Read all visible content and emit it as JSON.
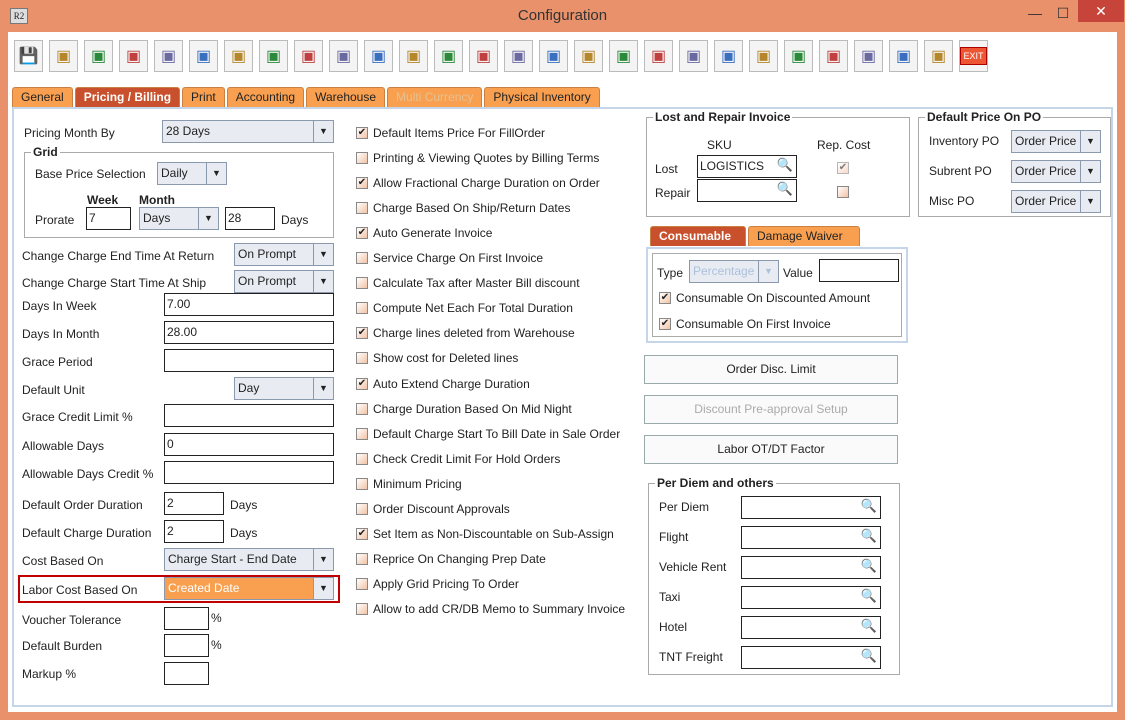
{
  "window": {
    "title": "Configuration",
    "app_icon": "R2",
    "minimize": "—",
    "maximize": "☐",
    "close": "✕"
  },
  "toolbar": {
    "icons": [
      "save-icon",
      "shipping-alert-icon",
      "coins-alert-icon",
      "invoice-alert-icon",
      "edit-note-icon",
      "form-alert-icon",
      "pay-alert-icon",
      "grid-alert-icon",
      "calculator-alert-icon",
      "lock-arrow-icon",
      "calendar-icon",
      "ruler-triangle-icon",
      "gears-icon",
      "color-cubes-icon",
      "gear-dollar-icon",
      "folder-clock-icon",
      "card-pen-icon",
      "document-cubes-icon",
      "document-arrow-icon",
      "shield-gold-icon",
      "shield-user-icon",
      "gear-wrench-icon",
      "document-stack-icon",
      "user-search-icon",
      "folder-gear-icon",
      "calculator-gear-icon",
      "transfer-icon",
      "exit-icon"
    ],
    "exit_label": "EXIT"
  },
  "tabs": [
    {
      "label": "General"
    },
    {
      "label": "Pricing / Billing",
      "active": true
    },
    {
      "label": "Print"
    },
    {
      "label": "Accounting"
    },
    {
      "label": "Warehouse"
    },
    {
      "label": "Multi Currency",
      "disabled": true
    },
    {
      "label": "Physical Inventory"
    }
  ],
  "left": {
    "pricing_month_by": {
      "label": "Pricing Month By",
      "value": "28 Days"
    },
    "grid": {
      "title": "Grid",
      "base_price_label": "Base Price Selection",
      "base_price_value": "Daily",
      "week_label": "Week",
      "month_label": "Month",
      "prorate_label": "Prorate",
      "week_value": "7",
      "month_unit": "Days",
      "month_value": "28",
      "days_label": "Days"
    },
    "fields": [
      {
        "label": "Change Charge End Time At Return",
        "type": "combo",
        "value": "On Prompt"
      },
      {
        "label": "Change Charge Start Time At Ship",
        "type": "combo",
        "value": "On Prompt"
      },
      {
        "label": "Days In Week",
        "type": "input",
        "value": "7.00"
      },
      {
        "label": "Days In Month",
        "type": "input",
        "value": "28.00"
      },
      {
        "label": "Grace Period",
        "type": "input",
        "value": ""
      },
      {
        "label": "Default Unit",
        "type": "combo",
        "value": "Day"
      },
      {
        "label": "Grace Credit Limit %",
        "type": "input",
        "value": ""
      },
      {
        "label": "Allowable Days",
        "type": "input",
        "value": "0"
      },
      {
        "label": "Allowable Days Credit %",
        "type": "input",
        "value": ""
      }
    ],
    "default_order_duration": {
      "label": "Default Order Duration",
      "value": "2",
      "unit": "Days"
    },
    "default_charge_duration": {
      "label": "Default Charge Duration",
      "value": "2",
      "unit": "Days"
    },
    "cost_based_on": {
      "label": "Cost Based On",
      "value": "Charge Start - End Date"
    },
    "labor_cost_based_on": {
      "label": "Labor Cost Based On",
      "value": "Created Date"
    },
    "voucher_tolerance": {
      "label": "Voucher Tolerance",
      "value": "",
      "unit": "%"
    },
    "default_burden": {
      "label": "Default Burden",
      "value": "",
      "unit": "%"
    },
    "markup": {
      "label": "Markup %",
      "value": ""
    }
  },
  "checkboxes": [
    {
      "label": "Default Items Price For FillOrder",
      "checked": true
    },
    {
      "label": "Printing & Viewing Quotes by Billing Terms",
      "checked": false
    },
    {
      "label": "Allow Fractional Charge Duration on Order",
      "checked": true
    },
    {
      "label": "Charge Based On Ship/Return Dates",
      "checked": false
    },
    {
      "label": "Auto Generate Invoice",
      "checked": true
    },
    {
      "label": "Service Charge On First Invoice",
      "checked": false
    },
    {
      "label": "Calculate Tax after Master Bill discount",
      "checked": false
    },
    {
      "label": "Compute Net Each For Total Duration",
      "checked": false
    },
    {
      "label": "Charge lines deleted from Warehouse",
      "checked": true
    },
    {
      "label": "Show cost for Deleted lines",
      "checked": false
    },
    {
      "label": "Auto Extend Charge Duration",
      "checked": true
    },
    {
      "label": "Charge Duration Based On Mid Night",
      "checked": false
    },
    {
      "label": "Default Charge Start To Bill Date in Sale Order",
      "checked": false
    },
    {
      "label": "Check Credit Limit For Hold Orders",
      "checked": false
    },
    {
      "label": "Minimum Pricing",
      "checked": false
    },
    {
      "label": "Order Discount Approvals",
      "checked": false
    },
    {
      "label": "Set Item as Non-Discountable on Sub-Assign",
      "checked": true
    },
    {
      "label": "Reprice On Changing Prep Date",
      "checked": false
    },
    {
      "label": "Apply Grid Pricing To Order",
      "checked": false
    },
    {
      "label": "Allow to add CR/DB Memo to Summary Invoice",
      "checked": false
    }
  ],
  "lost_repair": {
    "title": "Lost and Repair Invoice",
    "sku_label": "SKU",
    "rep_cost_label": "Rep. Cost",
    "lost_label": "Lost",
    "lost_value": "LOGISTICS",
    "lost_rep_cost": true,
    "repair_label": "Repair",
    "repair_value": "",
    "repair_rep_cost": false
  },
  "default_price_po": {
    "title": "Default Price On PO",
    "rows": [
      {
        "label": "Inventory PO",
        "value": "Order Price"
      },
      {
        "label": "Subrent PO",
        "value": "Order Price"
      },
      {
        "label": "Misc PO",
        "value": "Order Price"
      }
    ]
  },
  "sub_tabs": [
    {
      "label": "Consumable",
      "active": true
    },
    {
      "label": "Damage Waiver"
    }
  ],
  "consumable": {
    "type_label": "Type",
    "type_value": "Percentage",
    "value_label": "Value",
    "value": "",
    "on_discounted": {
      "label": "Consumable On Discounted Amount",
      "checked": true
    },
    "on_first_invoice": {
      "label": "Consumable On First Invoice",
      "checked": true
    }
  },
  "buttons": {
    "order_disc_limit": "Order Disc. Limit",
    "discount_preapproval": "Discount Pre-approval Setup",
    "labor_factor": "Labor OT/DT Factor"
  },
  "per_diem": {
    "title": "Per Diem and others",
    "rows": [
      "Per Diem",
      "Flight",
      "Vehicle Rent",
      "Taxi",
      "Hotel",
      "TNT Freight"
    ]
  },
  "colors": {
    "window_border": "#e8916a",
    "active_tab": "#c9502c",
    "tab": "#f8a050",
    "highlight_field": "#f8a050",
    "highlight_border": "#c00000"
  }
}
